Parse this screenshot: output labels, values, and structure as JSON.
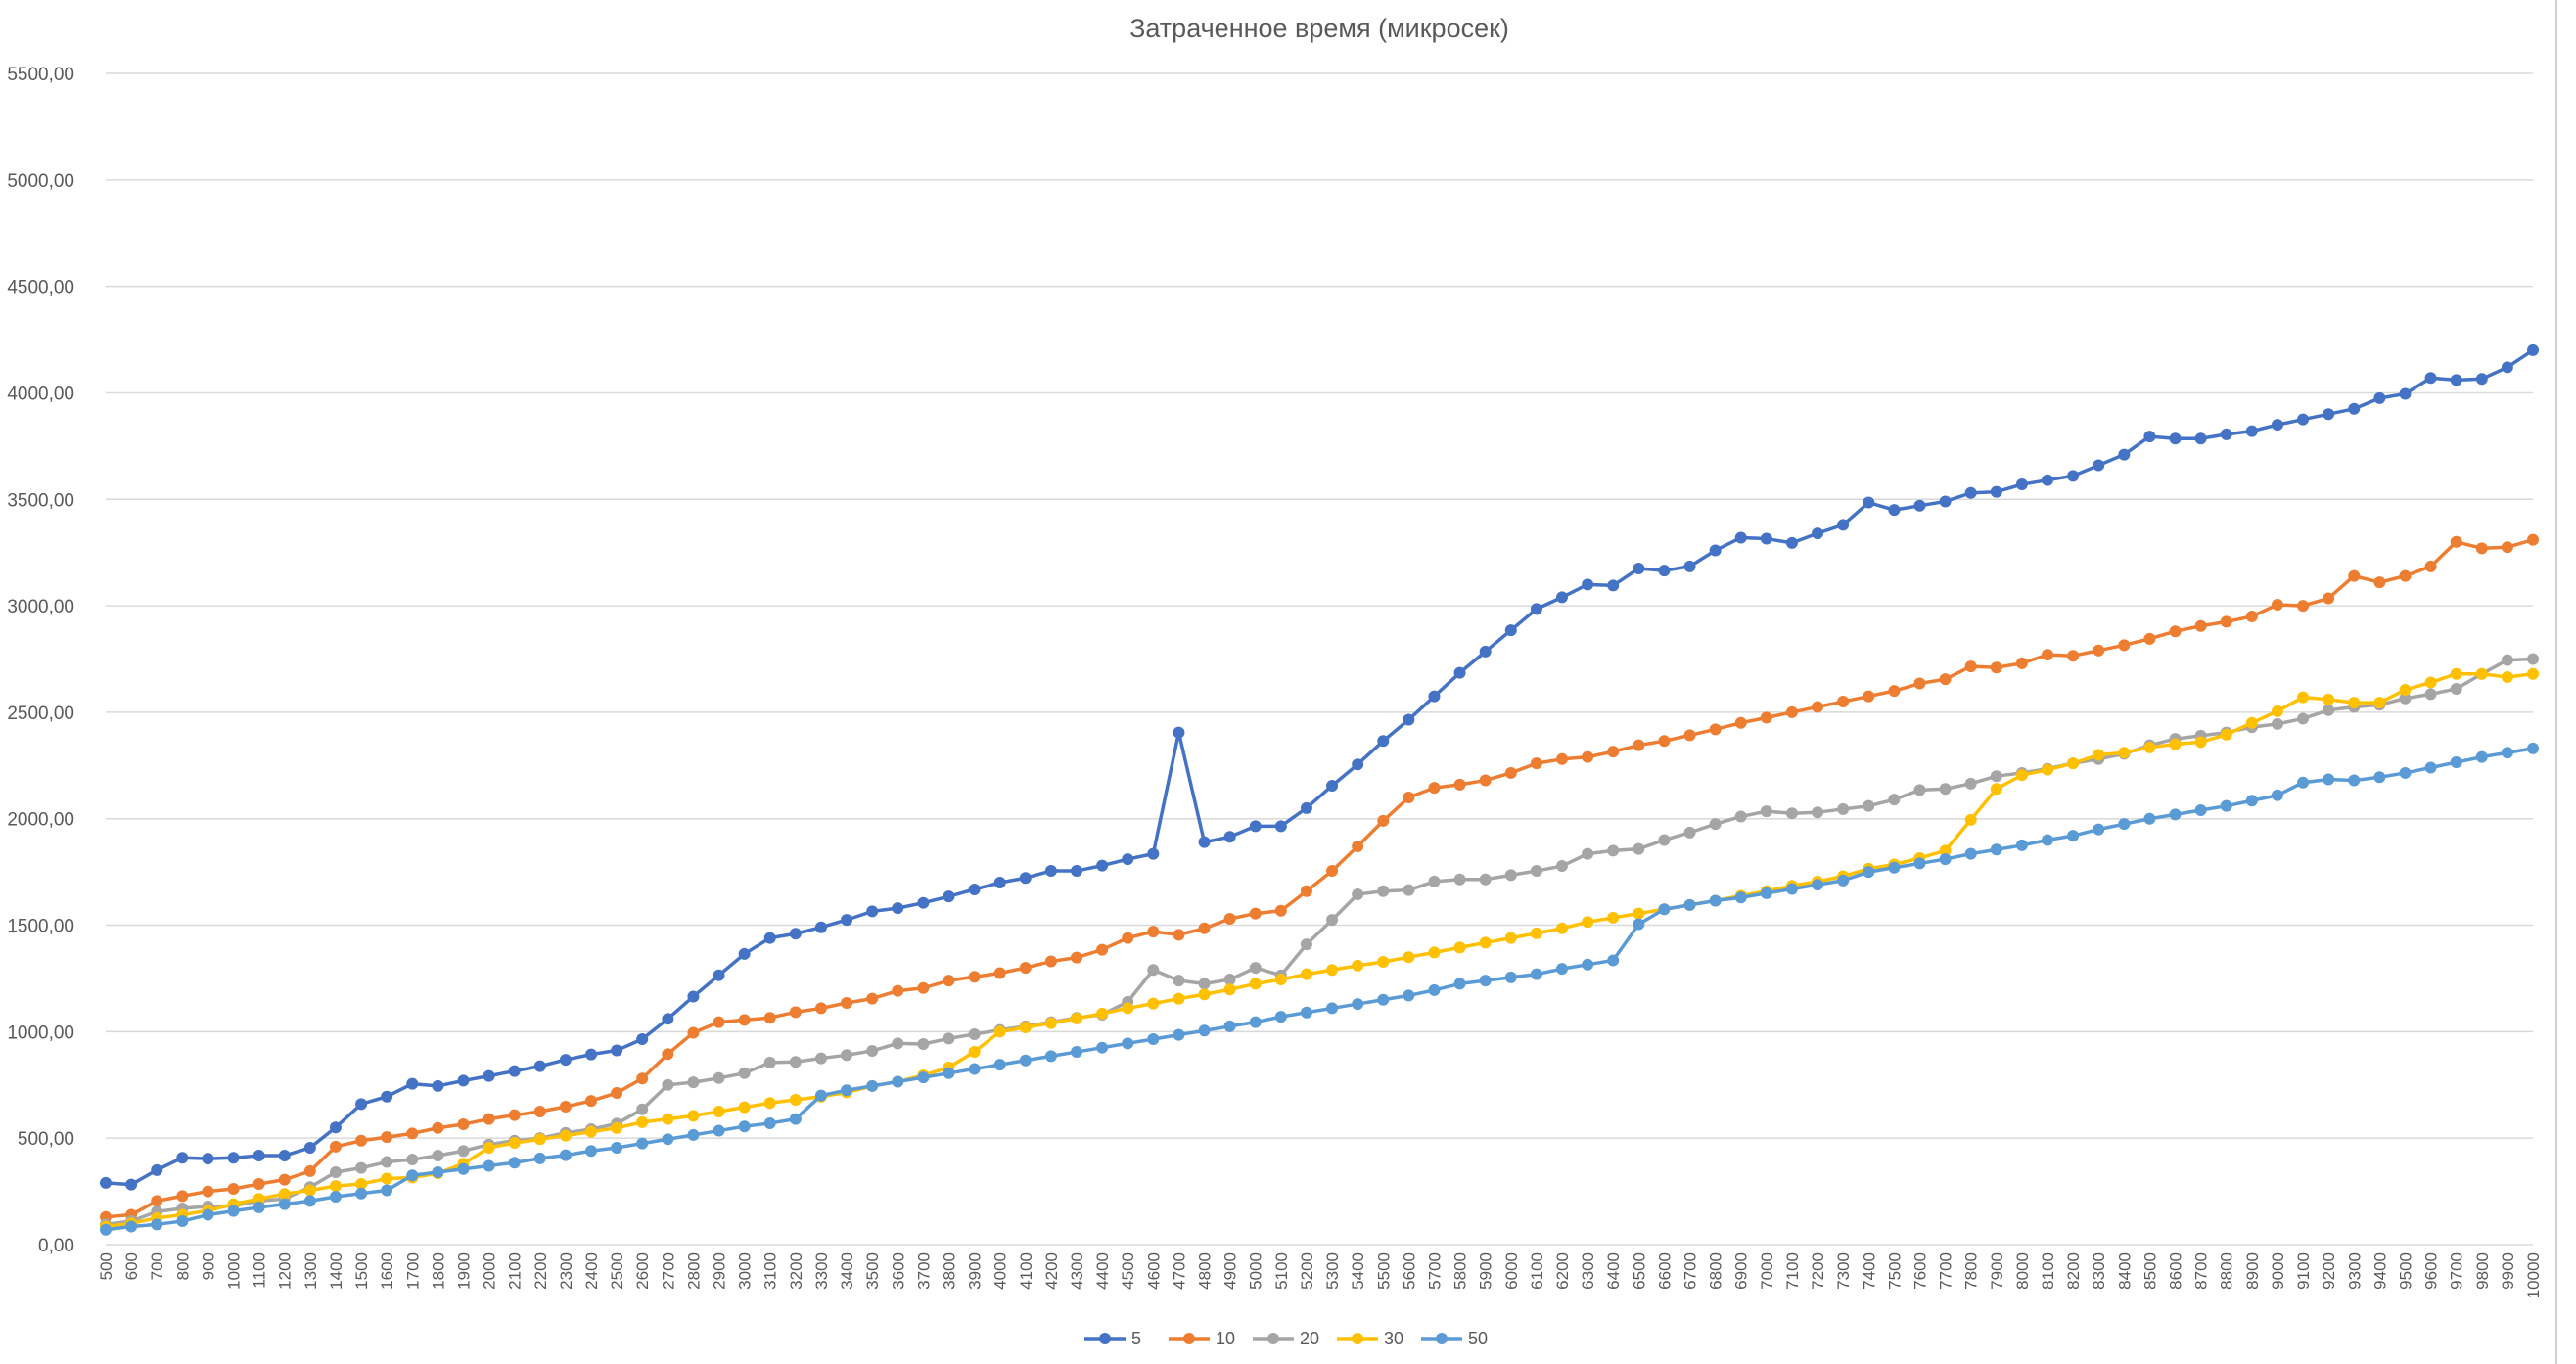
{
  "chart_data": {
    "type": "line",
    "title": "Затраченное время (микросек)",
    "xlabel": "",
    "ylabel": "",
    "ylim": [
      0,
      5500
    ],
    "y_ticks": [
      "0,00",
      "500,00",
      "1000,00",
      "1500,00",
      "2000,00",
      "2500,00",
      "3000,00",
      "3500,00",
      "4000,00",
      "4500,00",
      "5000,00",
      "5500,00"
    ],
    "grid": true,
    "legend_position": "bottom",
    "x": [
      500,
      600,
      700,
      800,
      900,
      1000,
      1100,
      1200,
      1300,
      1400,
      1500,
      1600,
      1700,
      1800,
      1900,
      2000,
      2100,
      2200,
      2300,
      2400,
      2500,
      2600,
      2700,
      2800,
      2900,
      3000,
      3100,
      3200,
      3300,
      3400,
      3500,
      3600,
      3700,
      3800,
      3900,
      4000,
      4100,
      4200,
      4300,
      4400,
      4500,
      4600,
      4700,
      4800,
      4900,
      5000,
      5100,
      5200,
      5300,
      5400,
      5500,
      5600,
      5700,
      5800,
      5900,
      6000,
      6100,
      6200,
      6300,
      6400,
      6500,
      6600,
      6700,
      6800,
      6900,
      7000,
      7100,
      7200,
      7300,
      7400,
      7500,
      7600,
      7700,
      7800,
      7900,
      8000,
      8100,
      8200,
      8300,
      8400,
      8500,
      8600,
      8700,
      8800,
      8900,
      9000,
      9100,
      9200,
      9300,
      9400,
      9500,
      9600,
      9700,
      9800,
      9900,
      10000
    ],
    "series": [
      {
        "name": "5",
        "color": "#4472C4",
        "values": [
          290,
          282,
          350,
          408,
          404,
          408,
          418,
          418,
          455,
          550,
          660,
          695,
          755,
          745,
          770,
          792,
          815,
          838,
          868,
          893,
          912,
          965,
          1060,
          1165,
          1265,
          1365,
          1440,
          1460,
          1490,
          1525,
          1565,
          1580,
          1605,
          1635,
          1668,
          1700,
          1722,
          1755,
          1755,
          1780,
          1810,
          1835,
          2405,
          1890,
          1915,
          1965,
          1965,
          2050,
          2155,
          2255,
          2365,
          2465,
          2575,
          2685,
          2785,
          2885,
          2985,
          3040,
          3100,
          3095,
          3175,
          3165,
          3185,
          3260,
          3320,
          3315,
          3295,
          3340,
          3380,
          3485,
          3450,
          3470,
          3490,
          3530,
          3535,
          3570,
          3590,
          3610,
          3660,
          3710,
          3795,
          3785,
          3785,
          3805,
          3820,
          3850,
          3875,
          3900,
          3925,
          3975,
          3995,
          4070,
          4060,
          4065,
          4120,
          4200
        ]
      },
      {
        "name": "10",
        "color": "#ED7D31",
        "values": [
          130,
          140,
          205,
          228,
          250,
          262,
          285,
          305,
          345,
          460,
          488,
          505,
          522,
          548,
          565,
          590,
          608,
          625,
          648,
          675,
          712,
          780,
          895,
          995,
          1045,
          1055,
          1065,
          1092,
          1110,
          1135,
          1155,
          1192,
          1205,
          1240,
          1258,
          1275,
          1300,
          1330,
          1348,
          1385,
          1440,
          1470,
          1455,
          1485,
          1530,
          1555,
          1568,
          1660,
          1755,
          1870,
          1990,
          2100,
          2145,
          2160,
          2180,
          2215,
          2260,
          2280,
          2290,
          2315,
          2345,
          2365,
          2392,
          2420,
          2450,
          2475,
          2500,
          2525,
          2550,
          2575,
          2600,
          2635,
          2655,
          2715,
          2710,
          2730,
          2770,
          2765,
          2790,
          2815,
          2845,
          2880,
          2905,
          2925,
          2950,
          3005,
          3000,
          3035,
          3140,
          3110,
          3140,
          3185,
          3300,
          3270,
          3275,
          3310
        ]
      },
      {
        "name": "20",
        "color": "#A5A5A5",
        "values": [
          95,
          110,
          155,
          170,
          180,
          182,
          205,
          215,
          270,
          340,
          360,
          388,
          400,
          418,
          440,
          470,
          488,
          500,
          525,
          542,
          568,
          635,
          750,
          762,
          782,
          805,
          855,
          858,
          875,
          890,
          910,
          945,
          942,
          968,
          988,
          1008,
          1025,
          1045,
          1065,
          1080,
          1140,
          1290,
          1240,
          1225,
          1245,
          1300,
          1265,
          1410,
          1525,
          1645,
          1660,
          1665,
          1705,
          1715,
          1715,
          1735,
          1755,
          1778,
          1835,
          1850,
          1858,
          1900,
          1935,
          1975,
          2010,
          2035,
          2025,
          2030,
          2045,
          2060,
          2090,
          2135,
          2140,
          2165,
          2200,
          2215,
          2235,
          2260,
          2280,
          2305,
          2345,
          2375,
          2390,
          2405,
          2430,
          2445,
          2470,
          2510,
          2525,
          2535,
          2565,
          2585,
          2610,
          2680,
          2745,
          2750
        ]
      },
      {
        "name": "30",
        "color": "#FFC000",
        "values": [
          85,
          100,
          125,
          140,
          160,
          190,
          215,
          238,
          255,
          275,
          285,
          310,
          315,
          335,
          380,
          455,
          478,
          495,
          512,
          530,
          548,
          575,
          590,
          605,
          625,
          645,
          665,
          680,
          695,
          715,
          745,
          765,
          795,
          832,
          905,
          1000,
          1020,
          1040,
          1062,
          1085,
          1110,
          1132,
          1155,
          1175,
          1198,
          1225,
          1245,
          1270,
          1290,
          1310,
          1328,
          1350,
          1372,
          1395,
          1418,
          1440,
          1462,
          1485,
          1515,
          1535,
          1555,
          1575,
          1595,
          1615,
          1638,
          1660,
          1685,
          1705,
          1730,
          1765,
          1785,
          1815,
          1850,
          1995,
          2140,
          2205,
          2230,
          2260,
          2300,
          2310,
          2335,
          2350,
          2360,
          2395,
          2450,
          2505,
          2570,
          2560,
          2545,
          2545,
          2605,
          2640,
          2680,
          2680,
          2665,
          2680
        ]
      },
      {
        "name": "50",
        "color": "#5B9BD5",
        "values": [
          70,
          85,
          95,
          110,
          140,
          158,
          175,
          190,
          205,
          225,
          240,
          255,
          325,
          340,
          355,
          370,
          385,
          405,
          420,
          440,
          455,
          475,
          495,
          515,
          535,
          555,
          570,
          590,
          700,
          725,
          745,
          765,
          785,
          805,
          825,
          845,
          865,
          885,
          905,
          925,
          945,
          965,
          985,
          1005,
          1025,
          1045,
          1070,
          1090,
          1110,
          1130,
          1150,
          1170,
          1195,
          1225,
          1240,
          1255,
          1270,
          1295,
          1315,
          1335,
          1505,
          1575,
          1595,
          1615,
          1630,
          1650,
          1670,
          1690,
          1710,
          1750,
          1770,
          1790,
          1810,
          1835,
          1855,
          1875,
          1900,
          1920,
          1950,
          1975,
          2000,
          2020,
          2040,
          2060,
          2085,
          2110,
          2170,
          2185,
          2180,
          2195,
          2215,
          2240,
          2265,
          2290,
          2310,
          2330
        ]
      }
    ]
  }
}
